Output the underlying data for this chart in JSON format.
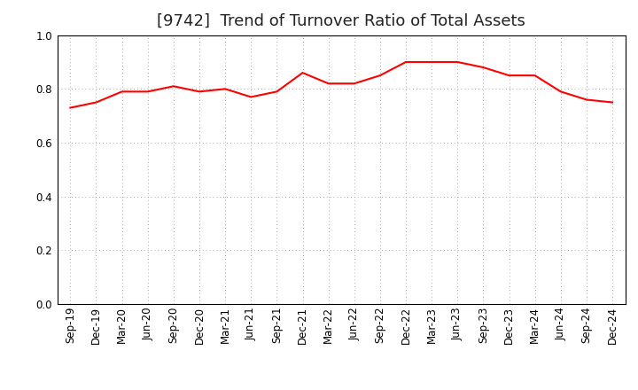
{
  "title": "[9742]  Trend of Turnover Ratio of Total Assets",
  "labels": [
    "Sep-19",
    "Dec-19",
    "Mar-20",
    "Jun-20",
    "Sep-20",
    "Dec-20",
    "Mar-21",
    "Jun-21",
    "Sep-21",
    "Dec-21",
    "Mar-22",
    "Jun-22",
    "Sep-22",
    "Dec-22",
    "Mar-23",
    "Jun-23",
    "Sep-23",
    "Dec-23",
    "Mar-24",
    "Jun-24",
    "Sep-24",
    "Dec-24"
  ],
  "values": [
    0.73,
    0.75,
    0.79,
    0.79,
    0.81,
    0.79,
    0.8,
    0.77,
    0.79,
    0.86,
    0.82,
    0.82,
    0.85,
    0.9,
    0.9,
    0.9,
    0.88,
    0.85,
    0.85,
    0.79,
    0.76,
    0.75
  ],
  "line_color": "#FF0000",
  "line_width": 1.5,
  "ylim": [
    0.0,
    1.0
  ],
  "yticks": [
    0.0,
    0.2,
    0.4,
    0.6,
    0.8,
    1.0
  ],
  "grid_color": "#AAAAAA",
  "background_color": "#FFFFFF",
  "title_fontsize": 13,
  "tick_fontsize": 8.5
}
